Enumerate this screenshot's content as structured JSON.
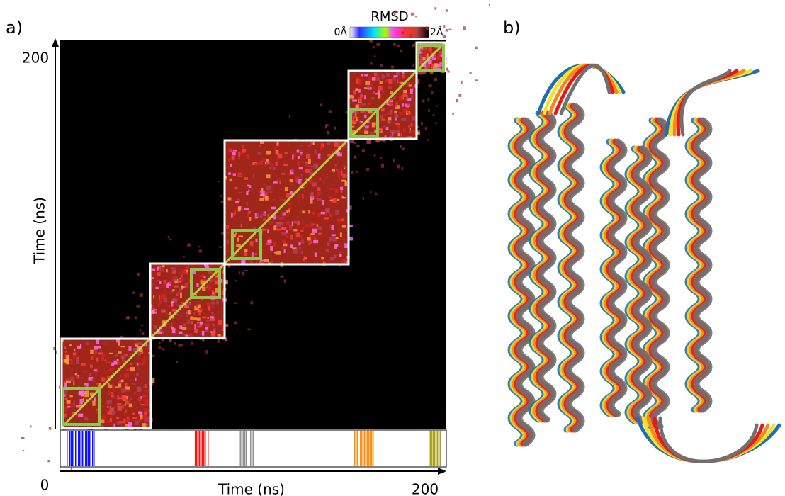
{
  "panel_a": {
    "label": "a)",
    "colorbar": {
      "title": "RMSD",
      "min_label": "0Å",
      "max_label": "2Å"
    },
    "y_axis": {
      "label": "Time (ns)",
      "top_tick": "200"
    },
    "x_axis": {
      "label": "Time (ns)",
      "start_tick": "0",
      "end_tick": "200"
    }
  },
  "panel_b": {
    "label": "b)"
  }
}
